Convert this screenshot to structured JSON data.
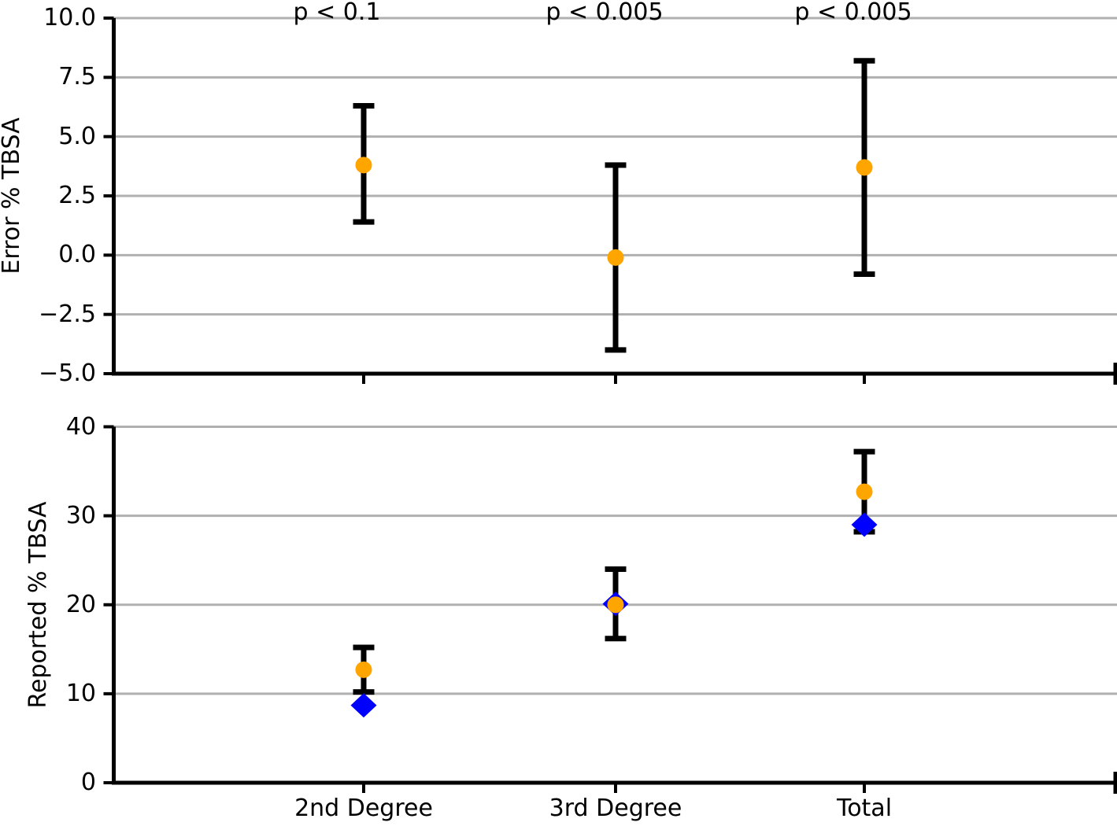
{
  "style": {
    "background": "#ffffff",
    "grid_color": "#b0b0b0",
    "axis_color": "#000000",
    "orange": "#ffa500",
    "blue": "#0000ff"
  },
  "chart_data": [
    {
      "type": "scatter",
      "panel": "top",
      "ylabel": "Error % TBSA",
      "ylim": [
        -5.0,
        10.0
      ],
      "yticks": [
        10.0,
        7.5,
        5.0,
        2.5,
        0.0,
        -2.5,
        -5.0
      ],
      "ytick_labels": [
        "10.0",
        "7.5",
        "5.0",
        "2.5",
        "0.0",
        "−2.5",
        "−5.0"
      ],
      "categories": [
        "2nd Degree",
        "3rd Degree",
        "Total"
      ],
      "annotations": [
        "p < 0.1",
        "p < 0.005",
        "p < 0.005"
      ],
      "grid": true,
      "legend": false,
      "series": [
        {
          "name": "orange-circle-mean",
          "marker": "circle",
          "color": "#ffa500",
          "values": [
            3.8,
            -0.1,
            3.7
          ],
          "err_lo": [
            1.4,
            -4.0,
            -0.8
          ],
          "err_hi": [
            6.3,
            3.8,
            8.2
          ]
        }
      ]
    },
    {
      "type": "scatter",
      "panel": "bottom",
      "ylabel": "Reported % TBSA",
      "ylim": [
        0,
        40
      ],
      "yticks": [
        40,
        30,
        20,
        10,
        0
      ],
      "ytick_labels": [
        "40",
        "30",
        "20",
        "10",
        "0"
      ],
      "categories": [
        "2nd Degree",
        "3rd Degree",
        "Total"
      ],
      "annotations": [],
      "grid": true,
      "legend": false,
      "series": [
        {
          "name": "blue-diamond",
          "marker": "diamond",
          "color": "#0000ff",
          "values": [
            8.7,
            20.1,
            29.0
          ]
        },
        {
          "name": "orange-circle-mean",
          "marker": "circle",
          "color": "#ffa500",
          "values": [
            12.7,
            20.0,
            32.7
          ],
          "err_lo": [
            10.2,
            16.2,
            28.2
          ],
          "err_hi": [
            15.2,
            24.0,
            37.2
          ]
        }
      ]
    }
  ]
}
